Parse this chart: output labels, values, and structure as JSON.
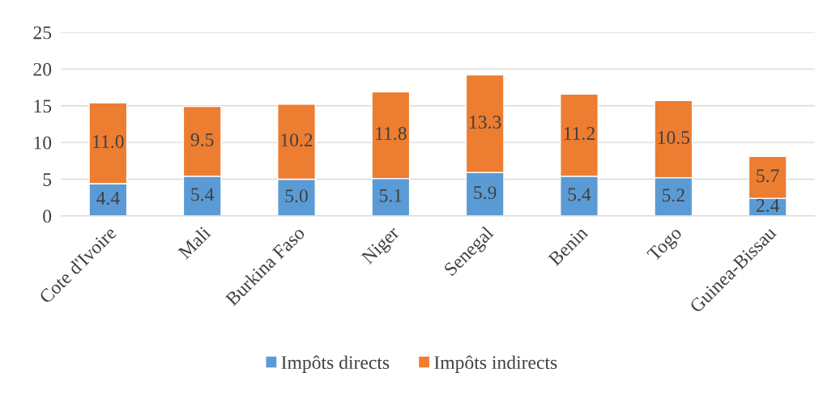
{
  "chart_data": {
    "type": "bar",
    "stacked": true,
    "categories": [
      "Cote d'Ivoire",
      "Mali",
      "Burkina Faso",
      "Niger",
      "Senegal",
      "Benin",
      "Togo",
      "Guinea-Bissau"
    ],
    "series": [
      {
        "name": "Impôts directs",
        "color": "#5b9bd5",
        "values": [
          4.4,
          5.4,
          5.0,
          5.1,
          5.9,
          5.4,
          5.2,
          2.4
        ],
        "value_labels": [
          "4.4",
          "5.4",
          "5.0",
          "5.1",
          "5.9",
          "5.4",
          "5.2",
          "2.4"
        ]
      },
      {
        "name": "Impôts indirects",
        "color": "#ed7d31",
        "values": [
          11.0,
          9.5,
          10.2,
          11.8,
          13.3,
          11.2,
          10.5,
          5.7
        ],
        "value_labels": [
          "11.0",
          "9.5",
          "10.2",
          "11.8",
          "13.3",
          "11.2",
          "10.5",
          "5.7"
        ]
      }
    ],
    "ylim": [
      0,
      25
    ],
    "yticks": [
      0,
      5,
      10,
      15,
      20,
      25
    ],
    "grid": "y",
    "legend": "bottom"
  }
}
